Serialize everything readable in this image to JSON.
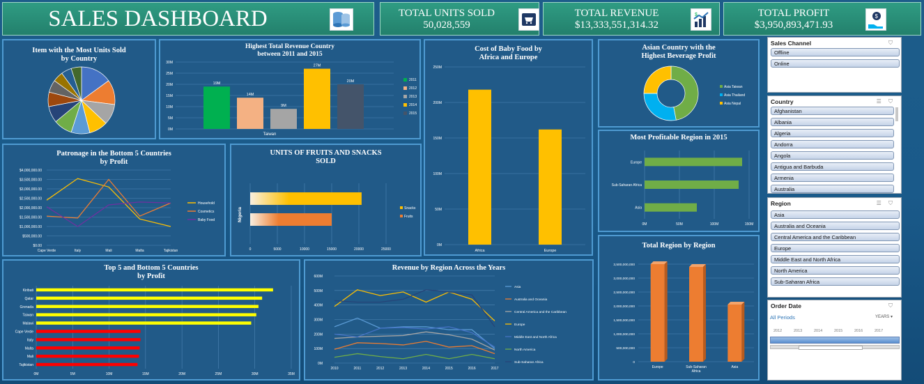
{
  "header": {
    "title": "SALES DASHBOARD",
    "units_label": "TOTAL UNITS SOLD",
    "units_value": "50,028,559",
    "revenue_label": "TOTAL REVENUE",
    "revenue_value": "$13,333,551,314.32",
    "profit_label": "TOTAL PROFIT",
    "profit_value": "$3,950,893,471.93"
  },
  "icons": {
    "title": "database-icon",
    "units": "shopping-cart-icon",
    "revenue": "growth-chart-icon",
    "profit": "money-bag-hand-icon"
  },
  "chart_data": [
    {
      "id": "units-by-country",
      "type": "pie",
      "title": "Item with the Most Units Sold\nby Country",
      "values": [
        15,
        12,
        10,
        9,
        9,
        9,
        8,
        7,
        6,
        5,
        5,
        5
      ],
      "colors": [
        "#4472c4",
        "#ed7d31",
        "#a5a5a5",
        "#ffc000",
        "#5b9bd5",
        "#70ad47",
        "#264478",
        "#9e480e",
        "#636363",
        "#997300",
        "#255e91",
        "#43682b"
      ]
    },
    {
      "id": "revenue-country",
      "type": "bar",
      "title": "Highest Total Revenue Country\nbetween 2011 and 2015",
      "categories": [
        "2011",
        "2012",
        "2013",
        "2014",
        "2015"
      ],
      "xlabel": "Taiwan",
      "values": [
        19,
        14,
        9,
        27,
        20
      ],
      "data_labels": [
        "19M",
        "14M",
        "9M",
        "27M",
        "20M"
      ],
      "colors": [
        "#00b050",
        "#f4b183",
        "#a5a5a5",
        "#ffc000",
        "#44546a"
      ],
      "yticks": [
        "0M",
        "5M",
        "10M",
        "15M",
        "20M",
        "25M",
        "30M"
      ],
      "ylim": [
        0,
        30
      ],
      "legend": "right"
    },
    {
      "id": "baby-food",
      "type": "bar",
      "title": "Cost of Baby Food by\nAfrica and Europe",
      "categories": [
        "Africa",
        "Europe"
      ],
      "values": [
        218,
        162
      ],
      "yticks": [
        "0M",
        "50M",
        "100M",
        "150M",
        "200M",
        "250M"
      ],
      "ylim": [
        0,
        250
      ],
      "color": "#ffc000"
    },
    {
      "id": "beverage-profit",
      "type": "pie",
      "title": "Asian Country with the\nHighest Beverage Profit",
      "categories": [
        "Asia Taiwan",
        "Asia Thailand",
        "Asia Nepal"
      ],
      "values": [
        47,
        28,
        25
      ],
      "colors": [
        "#70ad47",
        "#00b0f0",
        "#ffc000"
      ],
      "legend": "right"
    },
    {
      "id": "profitable-region",
      "type": "bar",
      "title": "Most Profitable Region in 2015",
      "categories": [
        "Europe",
        "Sub-Saharan Africa",
        "Asia"
      ],
      "values": [
        140,
        135,
        75
      ],
      "xticks": [
        "0M",
        "50M",
        "100M",
        "150M"
      ],
      "xlim": [
        0,
        150
      ],
      "color": "#70ad47"
    },
    {
      "id": "patronage",
      "type": "line",
      "title": "Patronage in the Bottom 5 Countries\nby Profit",
      "categories": [
        "Cape Verde",
        "Italy",
        "Mali",
        "Malta",
        "Tajikistan"
      ],
      "yticks": [
        "$0.00",
        "$500,000.00",
        "$1,000,000.00",
        "$1,500,000.00",
        "$2,000,000.00",
        "$2,500,000.00",
        "$3,000,000.00",
        "$3,500,000.00",
        "$4,000,000.00"
      ],
      "ylim": [
        0,
        4000000
      ],
      "legend": "right",
      "series": [
        {
          "name": "Household",
          "color": "#ffc000",
          "values": [
            2400000,
            3550000,
            3100000,
            1400000,
            1000000
          ]
        },
        {
          "name": "Cosmetics",
          "color": "#ed7d31",
          "values": [
            1550000,
            1450000,
            3500000,
            1550000,
            2250000
          ]
        },
        {
          "name": "Baby Food",
          "color": "#7030a0",
          "values": [
            2050000,
            1000000,
            2150000,
            2300000,
            2250000
          ]
        }
      ]
    },
    {
      "id": "fruits-snacks",
      "type": "bar",
      "title": "UNITS OF FRUITS AND SNACKS\nSOLD",
      "ylabel": "Nigeria",
      "categories": [
        "Snacks",
        "Fruits"
      ],
      "values": [
        20500,
        15000
      ],
      "colors": [
        "#ffc000",
        "#ed7d31"
      ],
      "xticks": [
        "0",
        "5000",
        "10000",
        "15000",
        "20000",
        "25000"
      ],
      "xlim": [
        0,
        25000
      ],
      "legend": "right"
    },
    {
      "id": "top-bottom",
      "type": "bar",
      "title": "Top 5 and Bottom 5 Countries\nby Profit",
      "categories": [
        "Kiribati",
        "Qatar",
        "Grenada",
        "Taiwan",
        "Malawi",
        "Cape Verde",
        "Italy",
        "Malta",
        "Mali",
        "Tajikistan"
      ],
      "values": [
        32.5,
        31,
        30.5,
        30.2,
        29.5,
        14.3,
        14.3,
        14.2,
        14.1,
        13.9
      ],
      "colors": [
        "#ffff00",
        "#ffff00",
        "#ffff00",
        "#ffff00",
        "#ffff00",
        "#ff0000",
        "#ff0000",
        "#ff0000",
        "#ff0000",
        "#ff0000"
      ],
      "xticks": [
        "0M",
        "5M",
        "10M",
        "15M",
        "20M",
        "25M",
        "30M",
        "35M"
      ],
      "xlim": [
        0,
        35
      ]
    },
    {
      "id": "revenue-region-years",
      "type": "line",
      "title": "Revenue by Region Across the Years",
      "categories": [
        "2010",
        "2011",
        "2012",
        "2013",
        "2014",
        "2015",
        "2016",
        "2017"
      ],
      "yticks": [
        "0M",
        "100M",
        "200M",
        "300M",
        "400M",
        "500M",
        "600M"
      ],
      "ylim": [
        0,
        600
      ],
      "legend": "right",
      "series": [
        {
          "name": "Asia",
          "color": "#5b9bd5",
          "values": [
            250,
            310,
            240,
            250,
            250,
            230,
            230,
            100
          ]
        },
        {
          "name": "Australia and Oceania",
          "color": "#ed7d31",
          "values": [
            95,
            140,
            135,
            125,
            150,
            110,
            120,
            65
          ]
        },
        {
          "name": "Central America and the Caribbean",
          "color": "#a5a5a5",
          "values": [
            170,
            180,
            185,
            190,
            215,
            195,
            165,
            90
          ]
        },
        {
          "name": "Europe",
          "color": "#ffc000",
          "values": [
            390,
            505,
            465,
            490,
            420,
            490,
            440,
            290
          ]
        },
        {
          "name": "Middle East and North Africa",
          "color": "#4472c4",
          "values": [
            200,
            180,
            240,
            245,
            235,
            250,
            210,
            110
          ]
        },
        {
          "name": "North America",
          "color": "#70ad47",
          "values": [
            40,
            65,
            45,
            30,
            60,
            30,
            60,
            30
          ]
        },
        {
          "name": "Sub-Saharan Africa",
          "color": "#264478",
          "values": [
            430,
            420,
            420,
            440,
            505,
            490,
            470,
            250
          ]
        }
      ]
    },
    {
      "id": "total-region",
      "type": "bar",
      "title": "Total Region by Region",
      "categories": [
        "Europe",
        "Sub-Saharan\nAfrica",
        "Asia"
      ],
      "values": [
        3500000000,
        3400000000,
        2050000000
      ],
      "yticks": [
        "0",
        "500,000,000",
        "1,000,000,000",
        "1,500,000,000",
        "2,000,000,000",
        "2,500,000,000",
        "3,000,000,000",
        "3,500,000,000"
      ],
      "ylim": [
        0,
        3500000000
      ],
      "color": "#ed7d31"
    }
  ],
  "slicers": {
    "channel": {
      "title": "Sales Channel",
      "items": [
        "Offline",
        "Online"
      ]
    },
    "country": {
      "title": "Country",
      "items": [
        "Afghanistan",
        "Albania",
        "Algeria",
        "Andorra",
        "Angola",
        "Antigua and Barbuda",
        "Armenia",
        "Australia"
      ]
    },
    "region": {
      "title": "Region",
      "items": [
        "Asia",
        "Australia and Oceania",
        "Central America and the Caribbean",
        "Europe",
        "Middle East and North Africa",
        "North America",
        "Sub-Saharan Africa"
      ]
    },
    "order_date": {
      "title": "Order Date",
      "period": "All Periods",
      "unit": "YEARS",
      "years": [
        "2012",
        "2013",
        "2014",
        "2015",
        "2016",
        "2017"
      ]
    }
  }
}
